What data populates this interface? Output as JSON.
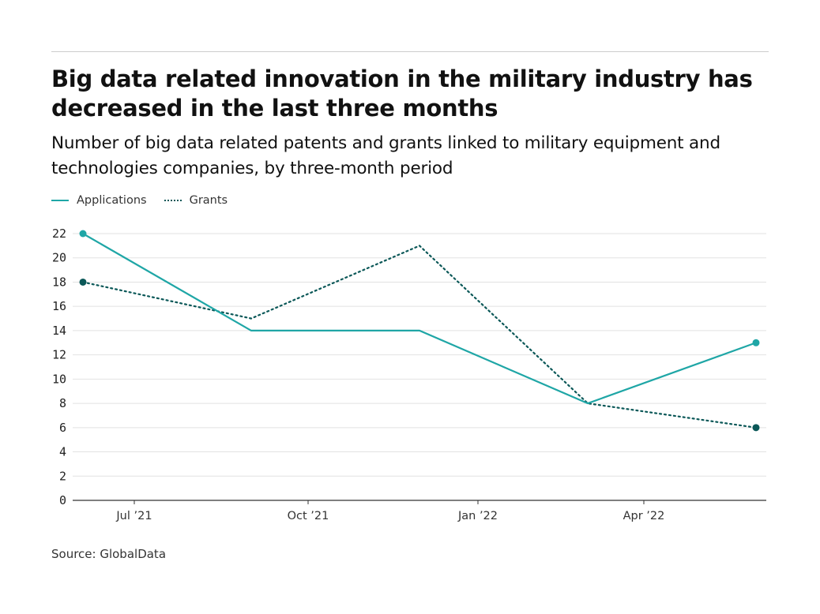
{
  "title": "Big data related innovation in the military industry has decreased in the last three months",
  "subtitle": "Number of big data related patents and grants linked to military equipment and technologies companies, by three-month period",
  "source": "Source: GlobalData",
  "chart_data": {
    "type": "line",
    "title": "Big data related innovation in the military industry has decreased in the last three months",
    "subtitle": "Number of big data related patents and grants linked to military equipment and technologies companies, by three-month period",
    "x": [
      "2021-06",
      "2021-09",
      "2021-12",
      "2022-03",
      "2022-06"
    ],
    "x_tick_labels": [
      "Jul ’21",
      "Oct ’21",
      "Jan ’22",
      "Apr ’22"
    ],
    "y_ticks": [
      0,
      2,
      4,
      6,
      8,
      10,
      12,
      14,
      16,
      18,
      20,
      22
    ],
    "ylim": [
      0,
      22
    ],
    "grid": "horizontal",
    "legend_placement": "top-left",
    "series": [
      {
        "name": "Applications",
        "values": [
          22,
          14,
          14,
          8,
          13
        ],
        "color": "#1fa6a6",
        "style": "solid"
      },
      {
        "name": "Grants",
        "values": [
          18,
          15,
          21,
          8,
          6
        ],
        "color": "#0b5858",
        "style": "dotted"
      }
    ]
  }
}
